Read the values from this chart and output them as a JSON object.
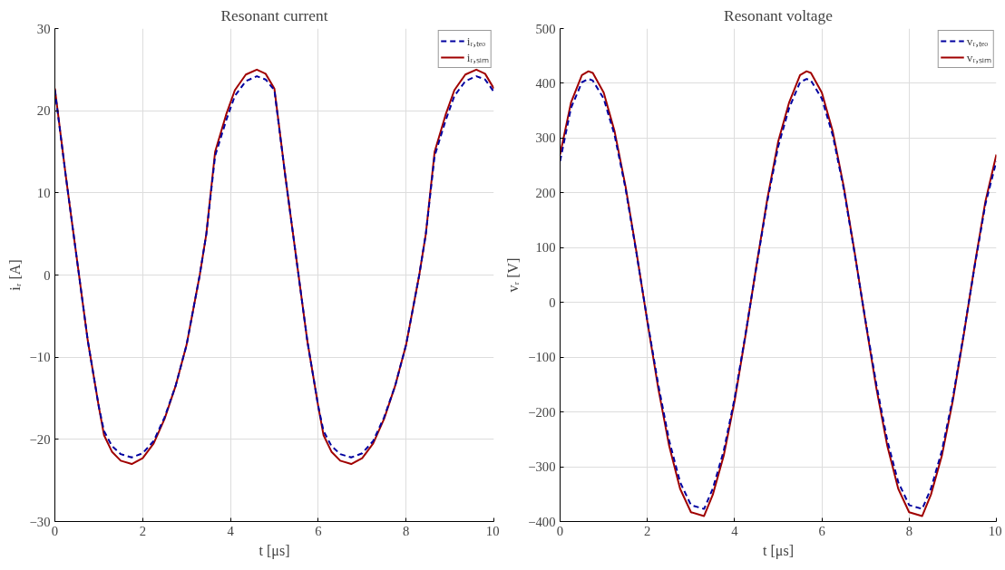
{
  "chart_data": [
    {
      "type": "line",
      "title": "Resonant current",
      "xlabel": "t [μs]",
      "ylabel": "iᵣ [A]",
      "xlim": [
        0,
        10
      ],
      "ylim": [
        -30,
        30
      ],
      "xticks": [
        0,
        2,
        4,
        6,
        8,
        10
      ],
      "yticks": [
        -30,
        -20,
        -10,
        0,
        10,
        20,
        30
      ],
      "grid": true,
      "legend": "top right",
      "series": [
        {
          "name": "iᵣ,ₜₑₒ",
          "color": "#0000a0",
          "line_style": "dashed",
          "x": [
            0,
            0.25,
            0.5,
            0.75,
            1.0,
            1.12,
            1.3,
            1.5,
            1.75,
            2.0,
            2.25,
            2.5,
            2.75,
            3.0,
            3.3,
            3.45,
            3.65,
            3.9,
            4.1,
            4.35,
            4.6,
            4.8,
            5.0,
            5.25,
            5.5,
            5.75,
            6.0,
            6.12,
            6.3,
            6.5,
            6.75,
            7.0,
            7.25,
            7.5,
            7.75,
            8.0,
            8.3,
            8.45,
            8.65,
            8.9,
            9.1,
            9.35,
            9.6,
            9.8,
            10
          ],
          "values": [
            22.5,
            12,
            2,
            -8,
            -16,
            -19,
            -20.8,
            -21.8,
            -22.2,
            -21.7,
            -20.2,
            -17.3,
            -13.5,
            -8.5,
            0,
            5,
            14.5,
            18.8,
            21.8,
            23.6,
            24.2,
            23.8,
            22.5,
            12,
            2,
            -8,
            -16,
            -19,
            -20.8,
            -21.8,
            -22.2,
            -21.7,
            -20.2,
            -17.3,
            -13.5,
            -8.5,
            0,
            5,
            14.5,
            18.8,
            21.8,
            23.6,
            24.2,
            23.8,
            22.3
          ]
        },
        {
          "name": "iᵣ,ₛᵢₘ",
          "color": "#a00000",
          "line_style": "solid",
          "x": [
            0,
            0.25,
            0.5,
            0.75,
            1.0,
            1.12,
            1.3,
            1.5,
            1.75,
            2.0,
            2.25,
            2.5,
            2.75,
            3.0,
            3.3,
            3.45,
            3.65,
            3.9,
            4.1,
            4.35,
            4.6,
            4.8,
            5.0,
            5.25,
            5.5,
            5.75,
            6.0,
            6.12,
            6.3,
            6.5,
            6.75,
            7.0,
            7.25,
            7.5,
            7.75,
            8.0,
            8.3,
            8.45,
            8.65,
            8.9,
            9.1,
            9.35,
            9.6,
            9.8,
            10
          ],
          "values": [
            22.7,
            12,
            2,
            -8,
            -16,
            -19.5,
            -21.5,
            -22.6,
            -23,
            -22.3,
            -20.5,
            -17.5,
            -13.5,
            -8.5,
            0,
            5,
            15,
            19.5,
            22.5,
            24.4,
            25,
            24.5,
            22.7,
            12,
            2,
            -8,
            -16,
            -19.5,
            -21.5,
            -22.6,
            -23,
            -22.3,
            -20.5,
            -17.5,
            -13.5,
            -8.5,
            0,
            5,
            15,
            19.5,
            22.5,
            24.4,
            25,
            24.5,
            22.7
          ]
        }
      ]
    },
    {
      "type": "line",
      "title": "Resonant voltage",
      "xlabel": "t [μs]",
      "ylabel": "vᵣ [V]",
      "xlim": [
        0,
        10
      ],
      "ylim": [
        -400,
        500
      ],
      "xticks": [
        0,
        2,
        4,
        6,
        8,
        10
      ],
      "yticks": [
        -400,
        -300,
        -200,
        -100,
        0,
        100,
        200,
        300,
        400,
        500
      ],
      "grid": true,
      "legend": "top right",
      "series": [
        {
          "name": "vᵣ,ₜₑₒ",
          "color": "#0000a0",
          "line_style": "dashed",
          "x": [
            0,
            0.25,
            0.5,
            0.65,
            0.75,
            1.0,
            1.25,
            1.5,
            1.75,
            2.0,
            2.25,
            2.5,
            2.75,
            3.0,
            3.3,
            3.5,
            3.75,
            4.0,
            4.25,
            4.5,
            4.75,
            5.0,
            5.25,
            5.5,
            5.65,
            5.75,
            6.0,
            6.25,
            6.5,
            6.75,
            7.0,
            7.25,
            7.5,
            7.75,
            8.0,
            8.3,
            8.5,
            8.75,
            9.0,
            9.25,
            9.5,
            9.75,
            10
          ],
          "values": [
            258,
            355,
            402,
            408,
            405,
            372,
            305,
            208,
            90,
            -33,
            -150,
            -252,
            -328,
            -370,
            -377,
            -340,
            -271,
            -175,
            -58,
            65,
            185,
            285,
            355,
            402,
            408,
            405,
            372,
            305,
            208,
            90,
            -33,
            -150,
            -252,
            -328,
            -370,
            -377,
            -340,
            -271,
            -175,
            -58,
            65,
            180,
            258
          ]
        },
        {
          "name": "vᵣ,ₛᵢₘ",
          "color": "#a00000",
          "line_style": "solid",
          "x": [
            0,
            0.25,
            0.5,
            0.65,
            0.75,
            1.0,
            1.25,
            1.5,
            1.75,
            2.0,
            2.25,
            2.5,
            2.75,
            3.0,
            3.3,
            3.5,
            3.75,
            4.0,
            4.25,
            4.5,
            4.75,
            5.0,
            5.25,
            5.5,
            5.65,
            5.75,
            6.0,
            6.25,
            6.5,
            6.75,
            7.0,
            7.25,
            7.5,
            7.75,
            8.0,
            8.3,
            8.5,
            8.75,
            9.0,
            9.25,
            9.5,
            9.75,
            10
          ],
          "values": [
            270,
            365,
            415,
            422,
            419,
            383,
            312,
            212,
            92,
            -35,
            -157,
            -262,
            -340,
            -383,
            -390,
            -351,
            -280,
            -180,
            -60,
            67,
            189,
            294,
            365,
            415,
            422,
            419,
            383,
            312,
            212,
            92,
            -35,
            -157,
            -262,
            -340,
            -383,
            -390,
            -351,
            -280,
            -180,
            -60,
            67,
            185,
            270
          ]
        }
      ]
    }
  ]
}
